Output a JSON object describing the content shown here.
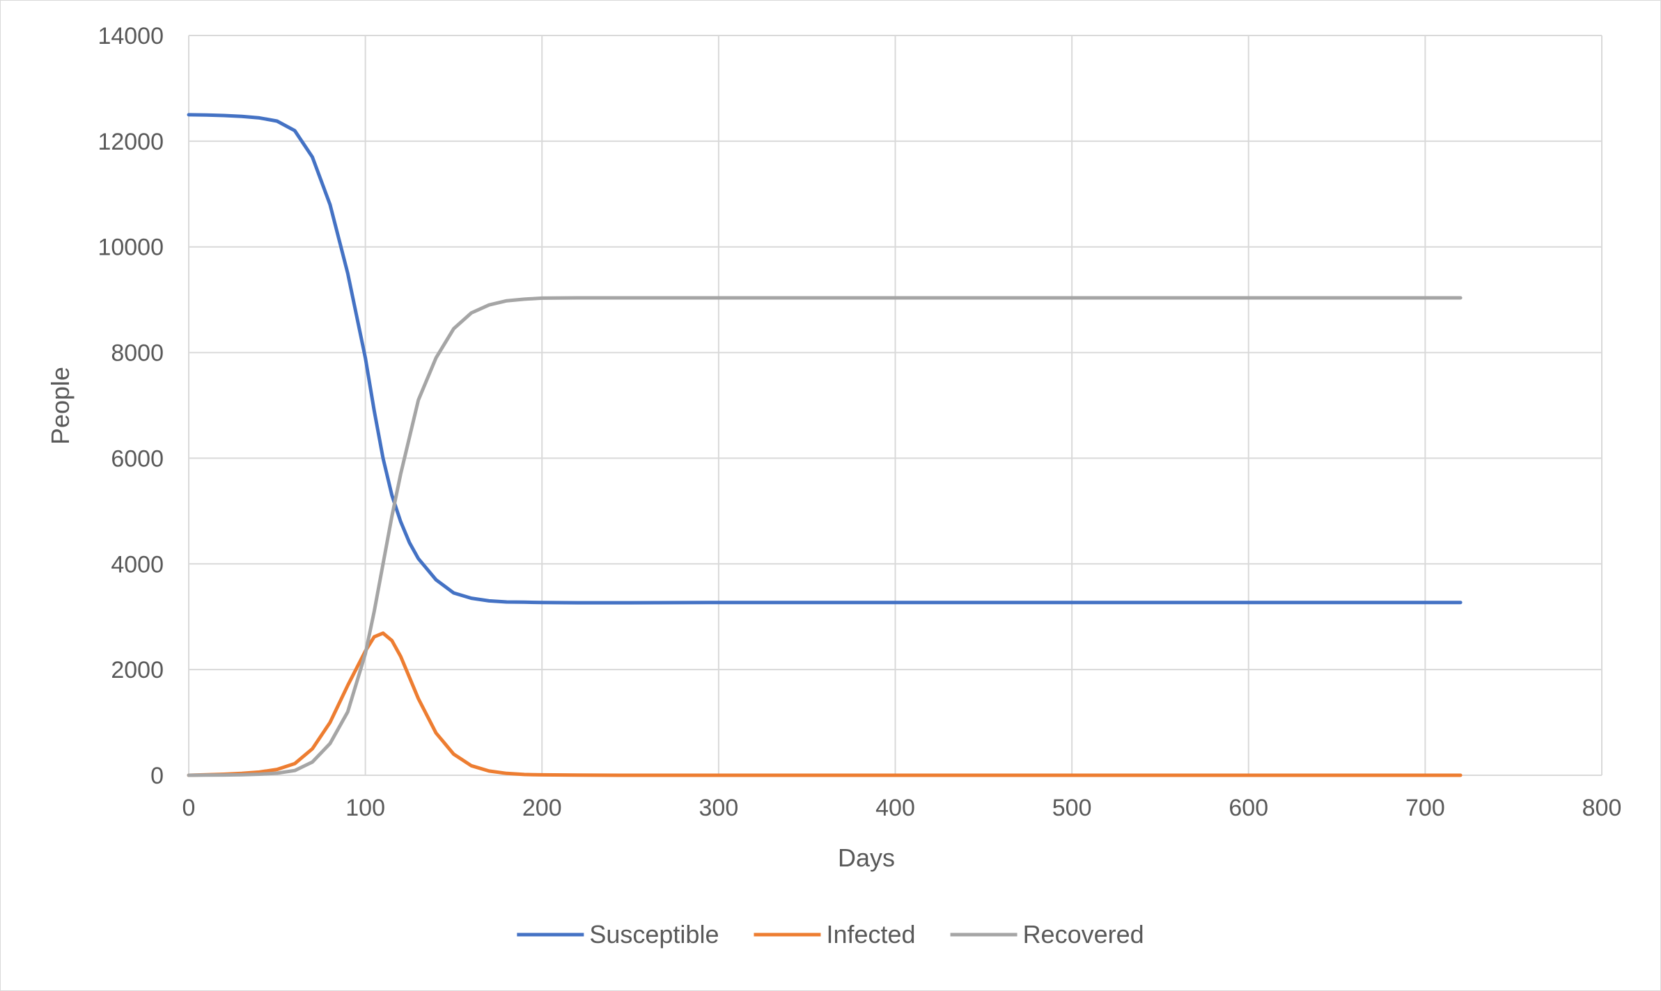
{
  "chart_data": {
    "type": "line",
    "title": "",
    "xlabel": "Days",
    "ylabel": "People",
    "xlim": [
      0,
      800
    ],
    "ylim": [
      0,
      14000
    ],
    "x_ticks": [
      0,
      100,
      200,
      300,
      400,
      500,
      600,
      700,
      800
    ],
    "y_ticks": [
      0,
      2000,
      4000,
      6000,
      8000,
      10000,
      12000,
      14000
    ],
    "grid": true,
    "legend_position": "bottom",
    "x": [
      0,
      10,
      20,
      30,
      40,
      50,
      60,
      70,
      80,
      90,
      100,
      105,
      110,
      115,
      120,
      125,
      130,
      140,
      150,
      160,
      170,
      180,
      190,
      200,
      220,
      250,
      300,
      400,
      500,
      600,
      700,
      720
    ],
    "series": [
      {
        "name": "Susceptible",
        "color": "#4472C4",
        "values": [
          12500,
          12495,
          12485,
          12470,
          12440,
          12380,
          12200,
          11700,
          10800,
          9500,
          7900,
          6900,
          6000,
          5300,
          4800,
          4400,
          4100,
          3700,
          3450,
          3350,
          3300,
          3280,
          3275,
          3270,
          3265,
          3265,
          3270,
          3270,
          3270,
          3270,
          3270,
          3270
        ]
      },
      {
        "name": "Infected",
        "color": "#ED7D31",
        "values": [
          0,
          10,
          20,
          35,
          60,
          110,
          220,
          500,
          1000,
          1700,
          2350,
          2620,
          2690,
          2550,
          2250,
          1850,
          1450,
          800,
          400,
          180,
          80,
          35,
          15,
          8,
          2,
          0,
          0,
          0,
          0,
          0,
          0,
          0
        ]
      },
      {
        "name": "Recovered",
        "color": "#A5A5A5",
        "values": [
          0,
          2,
          5,
          10,
          20,
          40,
          90,
          250,
          600,
          1200,
          2300,
          3100,
          4000,
          4900,
          5700,
          6400,
          7100,
          7900,
          8450,
          8750,
          8900,
          8980,
          9010,
          9030,
          9035,
          9035,
          9035,
          9035,
          9035,
          9035,
          9035,
          9035
        ]
      }
    ]
  }
}
